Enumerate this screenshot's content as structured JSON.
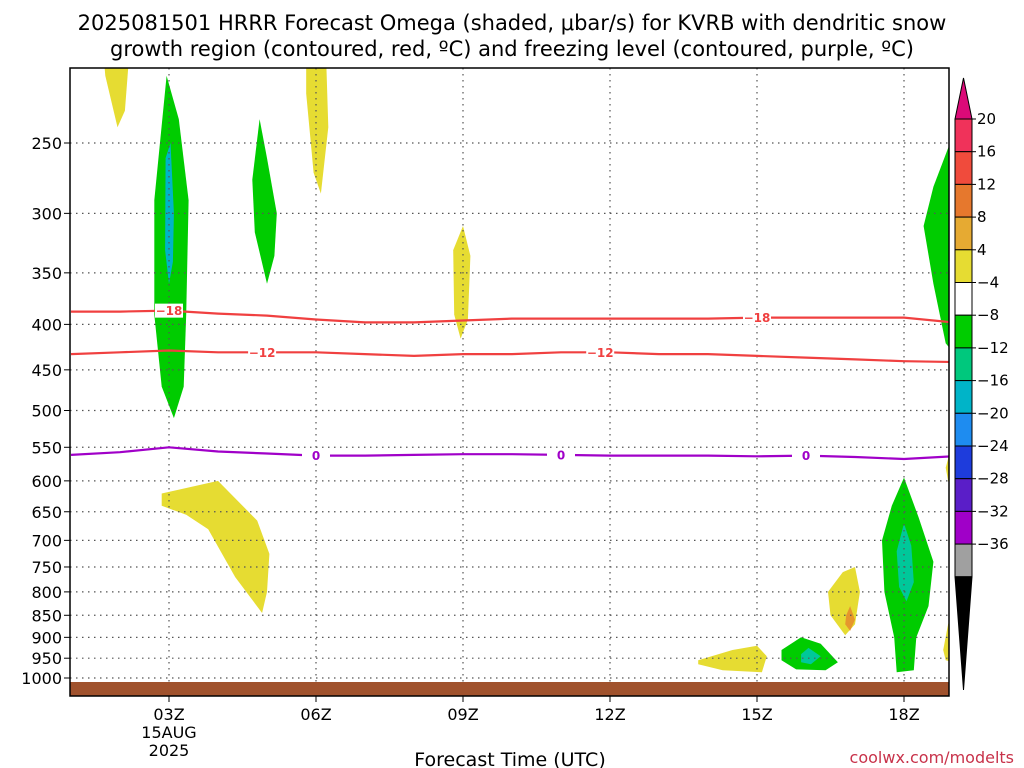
{
  "title": {
    "line1": "2025081501 HRRR Forecast Omega (shaded, μbar/s) for KVRB with dendritic snow",
    "line2": "growth region (contoured, red, ºC) and freezing level (contoured, purple, ºC)"
  },
  "credit": "coolwx.com/modelts",
  "colors": {
    "green": "#00cc00",
    "teal": "#00c89a",
    "cyan": "#00b4c8",
    "yellow": "#e6dc32",
    "orange": "#e6962d",
    "red_contour": "#f04040",
    "purple_contour": "#a000c8",
    "ground": "#a0522d"
  },
  "chart_data": {
    "type": "heatmap",
    "xlabel": "Forecast Time (UTC)",
    "x_range_hours": [
      0,
      18
    ],
    "x_ticks": [
      {
        "hour": 2,
        "label": "03Z",
        "sub": [
          "15AUG",
          "2025"
        ]
      },
      {
        "hour": 5,
        "label": "06Z",
        "sub": []
      },
      {
        "hour": 8,
        "label": "09Z",
        "sub": []
      },
      {
        "hour": 11,
        "label": "12Z",
        "sub": []
      },
      {
        "hour": 14,
        "label": "15Z",
        "sub": []
      },
      {
        "hour": 17,
        "label": "18Z",
        "sub": []
      }
    ],
    "y_scale": "log-pressure",
    "y_range_hpa": [
      1000,
      195
    ],
    "y_ticks": [
      250,
      300,
      350,
      400,
      450,
      500,
      550,
      600,
      650,
      700,
      750,
      800,
      850,
      900,
      950,
      1000
    ],
    "colorbar": {
      "labels": [
        "20",
        "16",
        "12",
        "8",
        "4",
        "−4",
        "−8",
        "−12",
        "−16",
        "−20",
        "−24",
        "−28",
        "−32",
        "−36"
      ],
      "colors": [
        "#f0325a",
        "#f04b3c",
        "#e6782d",
        "#e6aa32",
        "#e6dc32",
        "#ffffff",
        "#00cc00",
        "#00c87d",
        "#00b4c8",
        "#1e8cf0",
        "#1e3cdc",
        "#5a1ec8",
        "#a000c8",
        "#a0a0a0"
      ],
      "top_arrow": "#dc0a78",
      "bottom_arrow": "#000000"
    },
    "contours": [
      {
        "name": "-18",
        "color": "red",
        "label": "−18",
        "points": [
          [
            0,
            387
          ],
          [
            1,
            387
          ],
          [
            2,
            386
          ],
          [
            3,
            389
          ],
          [
            4,
            391
          ],
          [
            5,
            395
          ],
          [
            6,
            398
          ],
          [
            7,
            398
          ],
          [
            8,
            396
          ],
          [
            9,
            394
          ],
          [
            10,
            394
          ],
          [
            11,
            394
          ],
          [
            12,
            394
          ],
          [
            13,
            394
          ],
          [
            14,
            393
          ],
          [
            15,
            393
          ],
          [
            16,
            393
          ],
          [
            17,
            393
          ],
          [
            18,
            398
          ]
        ],
        "label_hours": [
          2,
          14
        ]
      },
      {
        "name": "-12",
        "color": "red",
        "label": "−12",
        "points": [
          [
            0,
            432
          ],
          [
            1,
            430
          ],
          [
            2,
            428
          ],
          [
            3,
            430
          ],
          [
            4,
            430
          ],
          [
            5,
            430
          ],
          [
            6,
            432
          ],
          [
            7,
            434
          ],
          [
            8,
            432
          ],
          [
            9,
            432
          ],
          [
            10,
            430
          ],
          [
            11,
            430
          ],
          [
            12,
            432
          ],
          [
            13,
            432
          ],
          [
            14,
            434
          ],
          [
            15,
            436
          ],
          [
            16,
            438
          ],
          [
            17,
            440
          ],
          [
            18,
            441
          ]
        ],
        "label_hours": [
          3.9,
          10.8
        ]
      },
      {
        "name": "0",
        "color": "purple",
        "label": "0",
        "points": [
          [
            0,
            561
          ],
          [
            1,
            557
          ],
          [
            2,
            550
          ],
          [
            3,
            556
          ],
          [
            4,
            559
          ],
          [
            5,
            562
          ],
          [
            6,
            562
          ],
          [
            7,
            561
          ],
          [
            8,
            560
          ],
          [
            9,
            560
          ],
          [
            10,
            561
          ],
          [
            11,
            562
          ],
          [
            12,
            562
          ],
          [
            13,
            562
          ],
          [
            14,
            563
          ],
          [
            15,
            562
          ],
          [
            16,
            564
          ],
          [
            17,
            567
          ],
          [
            18,
            563
          ]
        ],
        "label_hours": [
          5,
          10,
          15
        ]
      }
    ],
    "shaded": [
      {
        "color": "yellow",
        "pts": [
          [
            0.65,
            195
          ],
          [
            1.2,
            195
          ],
          [
            1.1,
            230
          ],
          [
            0.95,
            240
          ],
          [
            0.7,
            210
          ]
        ]
      },
      {
        "color": "green",
        "pts": [
          [
            1.7,
            290
          ],
          [
            1.95,
            210
          ],
          [
            2.2,
            235
          ],
          [
            2.4,
            290
          ],
          [
            2.35,
            390
          ],
          [
            2.3,
            470
          ],
          [
            2.1,
            510
          ],
          [
            1.85,
            470
          ],
          [
            1.7,
            390
          ]
        ]
      },
      {
        "color": "cyan",
        "pts": [
          [
            1.93,
            260
          ],
          [
            2.03,
            250
          ],
          [
            2.1,
            300
          ],
          [
            2.08,
            340
          ],
          [
            2.0,
            360
          ],
          [
            1.92,
            330
          ]
        ]
      },
      {
        "color": "yellow",
        "pts": [
          [
            1.85,
            620
          ],
          [
            3.0,
            600
          ],
          [
            3.8,
            665
          ],
          [
            4.05,
            725
          ],
          [
            4.0,
            800
          ],
          [
            3.9,
            845
          ],
          [
            3.35,
            770
          ],
          [
            2.8,
            680
          ],
          [
            2.35,
            655
          ],
          [
            1.85,
            640
          ]
        ]
      },
      {
        "color": "green",
        "pts": [
          [
            3.7,
            275
          ],
          [
            3.85,
            235
          ],
          [
            4.0,
            260
          ],
          [
            4.2,
            300
          ],
          [
            4.15,
            335
          ],
          [
            4.0,
            360
          ],
          [
            3.75,
            315
          ]
        ]
      },
      {
        "color": "yellow",
        "pts": [
          [
            4.8,
            195
          ],
          [
            5.2,
            195
          ],
          [
            5.25,
            240
          ],
          [
            5.1,
            285
          ],
          [
            4.95,
            270
          ],
          [
            4.8,
            220
          ]
        ]
      },
      {
        "color": "yellow",
        "pts": [
          [
            7.8,
            330
          ],
          [
            8.0,
            310
          ],
          [
            8.15,
            335
          ],
          [
            8.1,
            395
          ],
          [
            7.95,
            415
          ],
          [
            7.82,
            390
          ]
        ]
      },
      {
        "color": "yellow",
        "pts": [
          [
            12.8,
            955
          ],
          [
            13.5,
            930
          ],
          [
            14.0,
            920
          ],
          [
            14.2,
            945
          ],
          [
            14.1,
            985
          ],
          [
            13.3,
            980
          ],
          [
            12.8,
            965
          ]
        ]
      },
      {
        "color": "green",
        "pts": [
          [
            14.5,
            930
          ],
          [
            14.9,
            900
          ],
          [
            15.3,
            915
          ],
          [
            15.65,
            960
          ],
          [
            15.4,
            980
          ],
          [
            14.8,
            978
          ],
          [
            14.5,
            955
          ]
        ]
      },
      {
        "color": "teal",
        "pts": [
          [
            14.9,
            940
          ],
          [
            15.05,
            925
          ],
          [
            15.3,
            945
          ],
          [
            15.1,
            965
          ],
          [
            14.9,
            960
          ]
        ]
      },
      {
        "color": "yellow",
        "pts": [
          [
            15.45,
            800
          ],
          [
            15.75,
            760
          ],
          [
            16.0,
            750
          ],
          [
            16.1,
            800
          ],
          [
            16.0,
            870
          ],
          [
            15.8,
            895
          ],
          [
            15.5,
            850
          ]
        ]
      },
      {
        "color": "orange",
        "pts": [
          [
            15.82,
            850
          ],
          [
            15.9,
            830
          ],
          [
            16.0,
            860
          ],
          [
            15.9,
            885
          ],
          [
            15.8,
            870
          ]
        ]
      },
      {
        "color": "green",
        "pts": [
          [
            16.55,
            700
          ],
          [
            16.75,
            640
          ],
          [
            17.0,
            595
          ],
          [
            17.3,
            660
          ],
          [
            17.6,
            740
          ],
          [
            17.5,
            830
          ],
          [
            17.25,
            900
          ],
          [
            17.2,
            980
          ],
          [
            16.85,
            985
          ],
          [
            16.8,
            900
          ],
          [
            16.6,
            800
          ]
        ]
      },
      {
        "color": "teal",
        "pts": [
          [
            16.85,
            720
          ],
          [
            17.0,
            670
          ],
          [
            17.15,
            710
          ],
          [
            17.2,
            780
          ],
          [
            17.05,
            820
          ],
          [
            16.9,
            790
          ]
        ]
      },
      {
        "color": "green",
        "pts": [
          [
            17.4,
            310
          ],
          [
            17.6,
            280
          ],
          [
            18.0,
            245
          ],
          [
            18.0,
            430
          ],
          [
            17.85,
            420
          ],
          [
            17.6,
            360
          ]
        ]
      },
      {
        "color": "cyan",
        "pts": [
          [
            17.9,
            340
          ],
          [
            18.0,
            330
          ],
          [
            18.0,
            370
          ],
          [
            17.92,
            365
          ]
        ]
      },
      {
        "color": "yellow",
        "pts": [
          [
            17.8,
            930
          ],
          [
            17.9,
            870
          ],
          [
            18.0,
            840
          ],
          [
            18.0,
            960
          ],
          [
            17.85,
            955
          ]
        ]
      },
      {
        "color": "yellow",
        "pts": [
          [
            17.85,
            580
          ],
          [
            18.0,
            540
          ],
          [
            18.0,
            620
          ],
          [
            17.9,
            600
          ]
        ]
      }
    ]
  }
}
